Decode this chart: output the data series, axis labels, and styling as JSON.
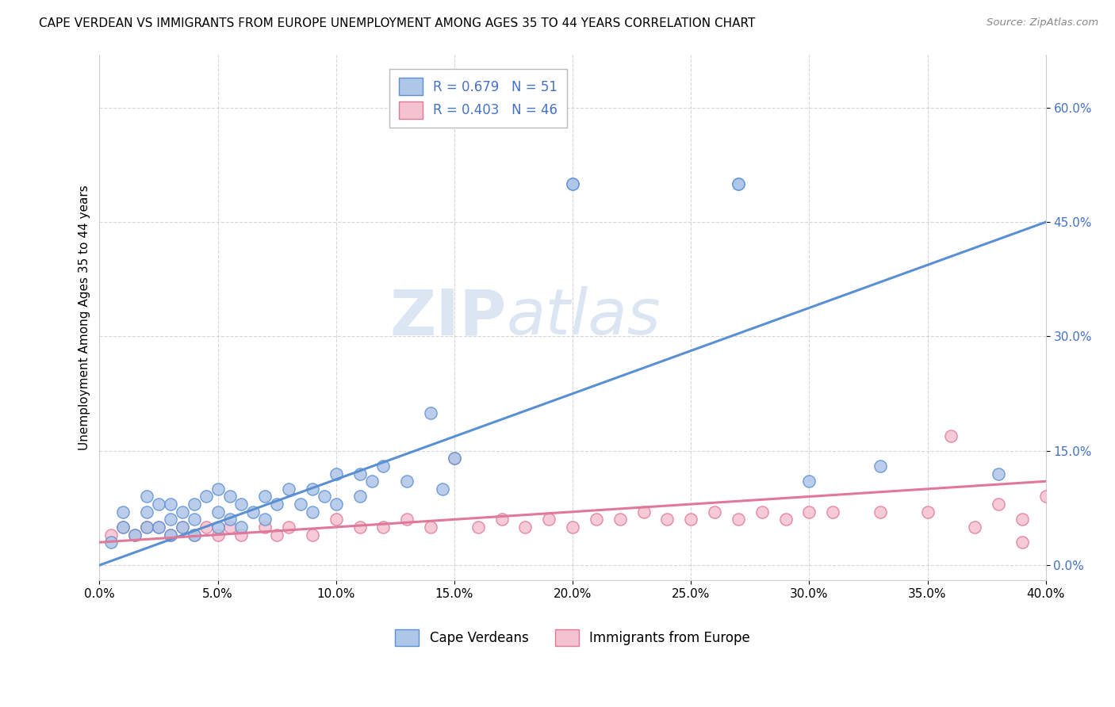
{
  "title": "CAPE VERDEAN VS IMMIGRANTS FROM EUROPE UNEMPLOYMENT AMONG AGES 35 TO 44 YEARS CORRELATION CHART",
  "source": "Source: ZipAtlas.com",
  "ylabel": "Unemployment Among Ages 35 to 44 years",
  "xlim": [
    0.0,
    0.4
  ],
  "ylim": [
    -0.02,
    0.67
  ],
  "xticks": [
    0.0,
    0.05,
    0.1,
    0.15,
    0.2,
    0.25,
    0.3,
    0.35,
    0.4
  ],
  "yticks": [
    0.0,
    0.15,
    0.3,
    0.45,
    0.6
  ],
  "xtick_labels": [
    "0.0%",
    "5.0%",
    "10.0%",
    "15.0%",
    "20.0%",
    "25.0%",
    "30.0%",
    "35.0%",
    "40.0%"
  ],
  "ytick_labels": [
    "0.0%",
    "15.0%",
    "30.0%",
    "45.0%",
    "60.0%"
  ],
  "blue_R": 0.679,
  "blue_N": 51,
  "pink_R": 0.403,
  "pink_N": 46,
  "blue_fill_color": "#aec6e8",
  "blue_edge_color": "#5b8fd4",
  "pink_fill_color": "#f5c2d0",
  "pink_edge_color": "#e07898",
  "label_color": "#4472c4",
  "watermark_zip": "ZIP",
  "watermark_atlas": "atlas",
  "watermark_color": "#dce6f3",
  "legend_label_blue": "Cape Verdeans",
  "legend_label_pink": "Immigrants from Europe",
  "blue_scatter_x": [
    0.005,
    0.01,
    0.01,
    0.015,
    0.02,
    0.02,
    0.02,
    0.025,
    0.025,
    0.03,
    0.03,
    0.03,
    0.035,
    0.035,
    0.04,
    0.04,
    0.04,
    0.045,
    0.05,
    0.05,
    0.05,
    0.055,
    0.055,
    0.06,
    0.06,
    0.065,
    0.07,
    0.07,
    0.075,
    0.08,
    0.085,
    0.09,
    0.09,
    0.095,
    0.1,
    0.1,
    0.11,
    0.11,
    0.115,
    0.12,
    0.13,
    0.14,
    0.145,
    0.15,
    0.2,
    0.2,
    0.27,
    0.27,
    0.3,
    0.33,
    0.38
  ],
  "blue_scatter_y": [
    0.03,
    0.05,
    0.07,
    0.04,
    0.05,
    0.07,
    0.09,
    0.05,
    0.08,
    0.04,
    0.06,
    0.08,
    0.05,
    0.07,
    0.04,
    0.06,
    0.08,
    0.09,
    0.05,
    0.07,
    0.1,
    0.06,
    0.09,
    0.05,
    0.08,
    0.07,
    0.06,
    0.09,
    0.08,
    0.1,
    0.08,
    0.07,
    0.1,
    0.09,
    0.08,
    0.12,
    0.09,
    0.12,
    0.11,
    0.13,
    0.11,
    0.2,
    0.1,
    0.14,
    0.5,
    0.5,
    0.5,
    0.5,
    0.11,
    0.13,
    0.12
  ],
  "pink_scatter_x": [
    0.005,
    0.01,
    0.015,
    0.02,
    0.025,
    0.03,
    0.035,
    0.04,
    0.045,
    0.05,
    0.055,
    0.06,
    0.07,
    0.075,
    0.08,
    0.09,
    0.1,
    0.11,
    0.12,
    0.13,
    0.14,
    0.15,
    0.16,
    0.17,
    0.18,
    0.19,
    0.2,
    0.21,
    0.22,
    0.23,
    0.24,
    0.25,
    0.26,
    0.27,
    0.28,
    0.29,
    0.3,
    0.31,
    0.33,
    0.35,
    0.36,
    0.37,
    0.38,
    0.39,
    0.39,
    0.4
  ],
  "pink_scatter_y": [
    0.04,
    0.05,
    0.04,
    0.05,
    0.05,
    0.04,
    0.05,
    0.04,
    0.05,
    0.04,
    0.05,
    0.04,
    0.05,
    0.04,
    0.05,
    0.04,
    0.06,
    0.05,
    0.05,
    0.06,
    0.05,
    0.14,
    0.05,
    0.06,
    0.05,
    0.06,
    0.05,
    0.06,
    0.06,
    0.07,
    0.06,
    0.06,
    0.07,
    0.06,
    0.07,
    0.06,
    0.07,
    0.07,
    0.07,
    0.07,
    0.17,
    0.05,
    0.08,
    0.06,
    0.03,
    0.09
  ],
  "blue_trend_x": [
    0.0,
    0.4
  ],
  "blue_trend_y": [
    0.0,
    0.45
  ],
  "pink_trend_x": [
    0.0,
    0.4
  ],
  "pink_trend_y": [
    0.03,
    0.11
  ]
}
